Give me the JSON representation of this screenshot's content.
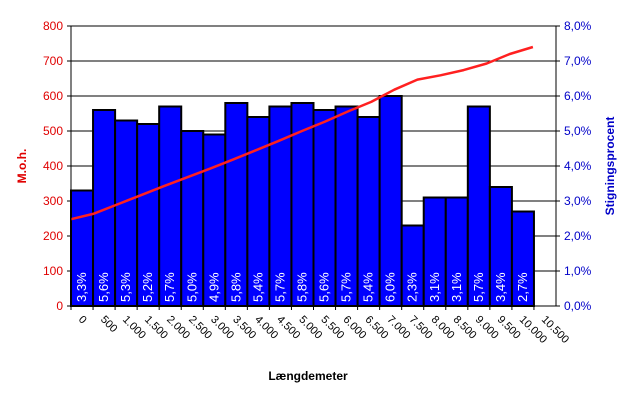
{
  "chart_data": {
    "type": "bar",
    "xlabel": "Længdemeter",
    "ylabel_left": "M.o.h.",
    "ylabel_right": "Stigningsprocent",
    "ylim_left": [
      0,
      800
    ],
    "ylim_right": [
      0,
      8
    ],
    "grid": true,
    "legend": "none",
    "colors": {
      "bars": "#0000ff",
      "line": "#ff2020",
      "left_axis": "#e00000",
      "right_axis": "#0000c8"
    },
    "left_ticks": [
      "0",
      "100",
      "200",
      "300",
      "400",
      "500",
      "600",
      "700",
      "800"
    ],
    "right_ticks": [
      "0,0%",
      "1,0%",
      "2,0%",
      "3,0%",
      "4,0%",
      "5,0%",
      "6,0%",
      "7,0%",
      "8,0%"
    ],
    "x_ticks": [
      "0",
      "500",
      "1.000",
      "1.500",
      "2.000",
      "2.500",
      "3.000",
      "3.500",
      "4.000",
      "4.500",
      "5.000",
      "5.500",
      "6.000",
      "6.500",
      "7.000",
      "7.500",
      "8.000",
      "8.500",
      "9.000",
      "9.500",
      "10.000",
      "10.500"
    ],
    "bars": {
      "axis": "right",
      "values": [
        3.3,
        5.6,
        5.3,
        5.2,
        5.7,
        5.0,
        4.9,
        5.8,
        5.4,
        5.7,
        5.8,
        5.6,
        5.7,
        5.4,
        6.0,
        2.3,
        3.1,
        3.1,
        5.7,
        3.4,
        2.7
      ],
      "labels": [
        "3,3%",
        "5,6%",
        "5,3%",
        "5,2%",
        "5,7%",
        "5,0%",
        "4,9%",
        "5,8%",
        "5,4%",
        "5,7%",
        "5,8%",
        "5,6%",
        "5,7%",
        "5,4%",
        "6,0%",
        "2,3%",
        "3,1%",
        "3,1%",
        "5,7%",
        "3,4%",
        "2,7%"
      ]
    },
    "line": {
      "axis": "left",
      "x": [
        0,
        500,
        1000,
        1500,
        2000,
        2500,
        3000,
        3500,
        4000,
        4500,
        5000,
        5500,
        6000,
        6500,
        7000,
        7500,
        8000,
        8500,
        9000,
        9500,
        10000
      ],
      "values": [
        248,
        264,
        290,
        316,
        342,
        367,
        392,
        418,
        445,
        472,
        500,
        527,
        556,
        583,
        618,
        647,
        659,
        674,
        693,
        720,
        740
      ]
    }
  }
}
